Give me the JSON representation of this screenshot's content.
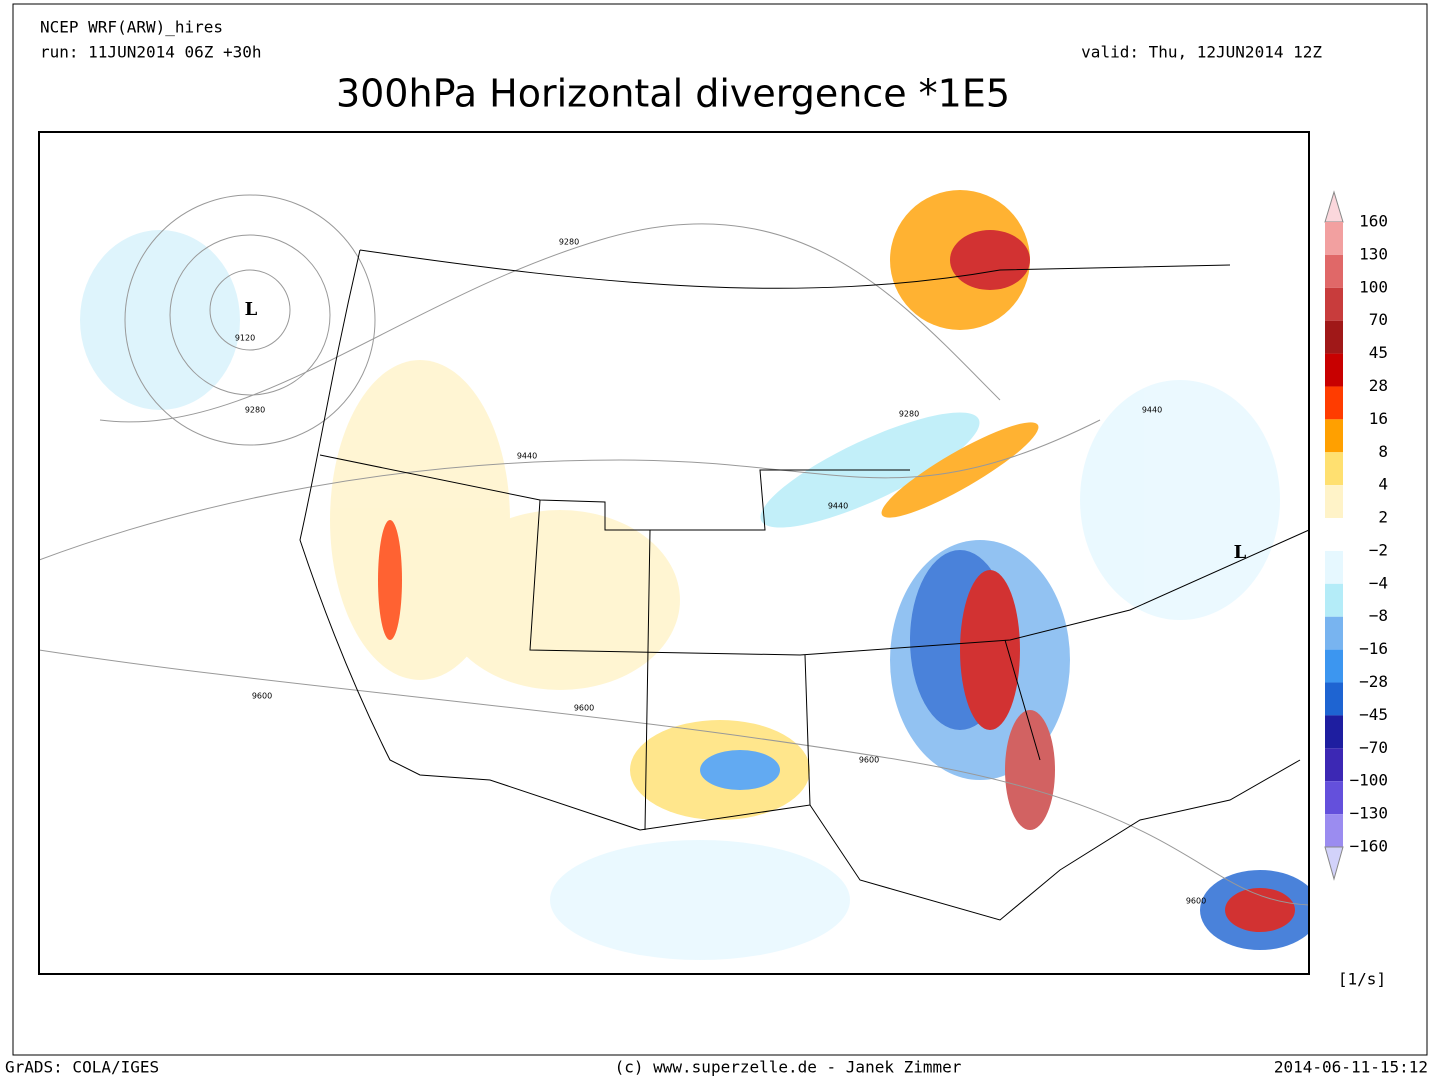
{
  "header": {
    "model": "NCEP WRF(ARW)_hires",
    "run": "run: 11JUN2014 06Z +30h",
    "valid": "valid: Thu, 12JUN2014 12Z",
    "title": "300hPa Horizontal divergence *1E5"
  },
  "colorbar": {
    "labels": [
      "160",
      "130",
      "100",
      "70",
      "45",
      "28",
      "16",
      "8",
      "4",
      "2",
      "−2",
      "−4",
      "−8",
      "−16",
      "−28",
      "−45",
      "−70",
      "−100",
      "−130",
      "−160"
    ],
    "colors": [
      "#fbd7dc",
      "#f2a0a0",
      "#e06868",
      "#c83c3c",
      "#a01818",
      "#c80000",
      "#ff3c00",
      "#ffa000",
      "#ffe070",
      "#fff3c8",
      "#ffffff",
      "#e6f8ff",
      "#b4ecf8",
      "#78b4f0",
      "#3c96f0",
      "#1e64d2",
      "#1e1ea0",
      "#3c28b4",
      "#6450dc",
      "#9b8cf0",
      "#d2d2fa"
    ],
    "unit": "[1/s]"
  },
  "map": {
    "lows": [
      "L",
      "L"
    ],
    "contour_labels": [
      "9280",
      "9120",
      "9280",
      "9440",
      "9280",
      "9440",
      "9440",
      "9600",
      "9600",
      "9600",
      "9600"
    ]
  },
  "footer": {
    "left": "GrADS: COLA/IGES",
    "center": "(c) www.superzelle.de - Janek Zimmer",
    "right": "2014-06-11-15:12"
  }
}
